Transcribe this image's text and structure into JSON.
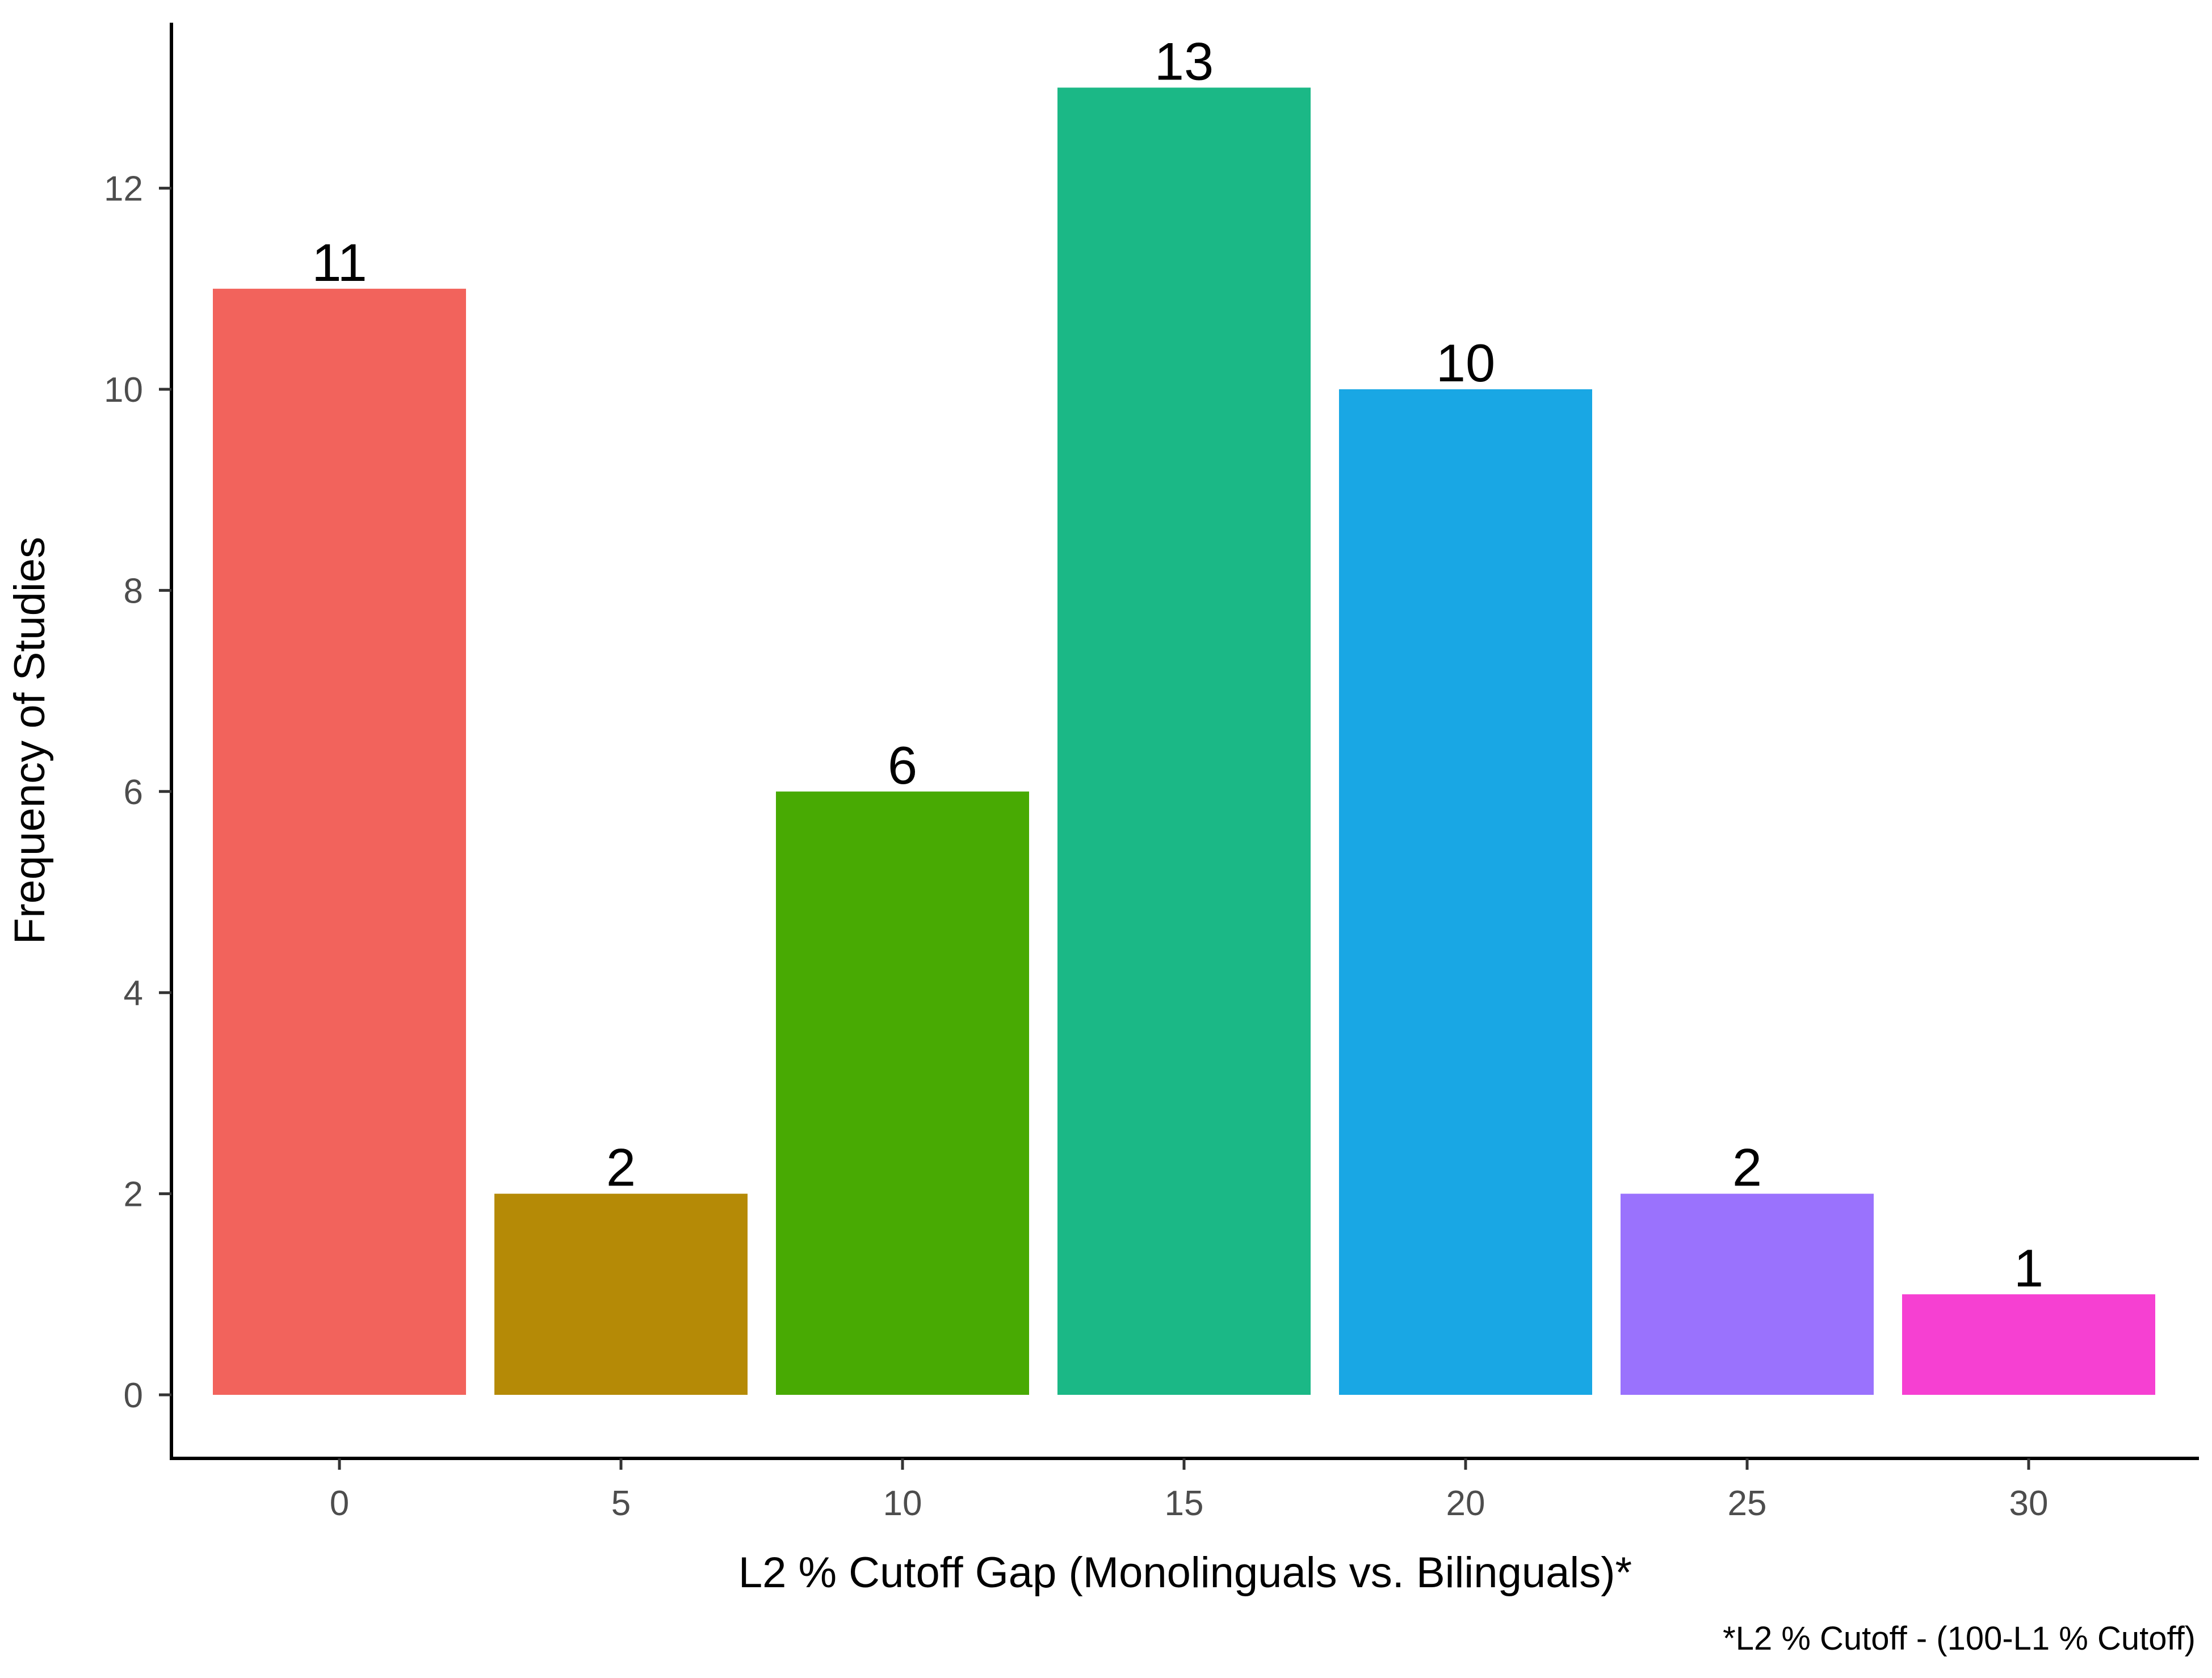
{
  "chart_data": {
    "type": "bar",
    "categories": [
      "0",
      "5",
      "10",
      "15",
      "20",
      "25",
      "30"
    ],
    "values": [
      11,
      2,
      6,
      13,
      10,
      2,
      1
    ],
    "data_labels": [
      "11",
      "2",
      "6",
      "13",
      "10",
      "2",
      "1"
    ],
    "colors": [
      "#F2635C",
      "#B58A06",
      "#48AA03",
      "#1BB886",
      "#19A7E4",
      "#9A72FD",
      "#F640D2"
    ],
    "title": "",
    "xlabel": "L2 % Cutoff Gap (Monolinguals vs. Bilinguals)*",
    "ylabel": "Frequency of Studies",
    "caption": "*L2 % Cutoff - (100-L1 % Cutoff)",
    "x_ticks": [
      "0",
      "5",
      "10",
      "15",
      "20",
      "25",
      "30"
    ],
    "y_ticks": [
      "0",
      "2",
      "4",
      "6",
      "8",
      "10",
      "12"
    ],
    "ylim": [
      0,
      13.65
    ],
    "grid": false,
    "legend": "none"
  }
}
